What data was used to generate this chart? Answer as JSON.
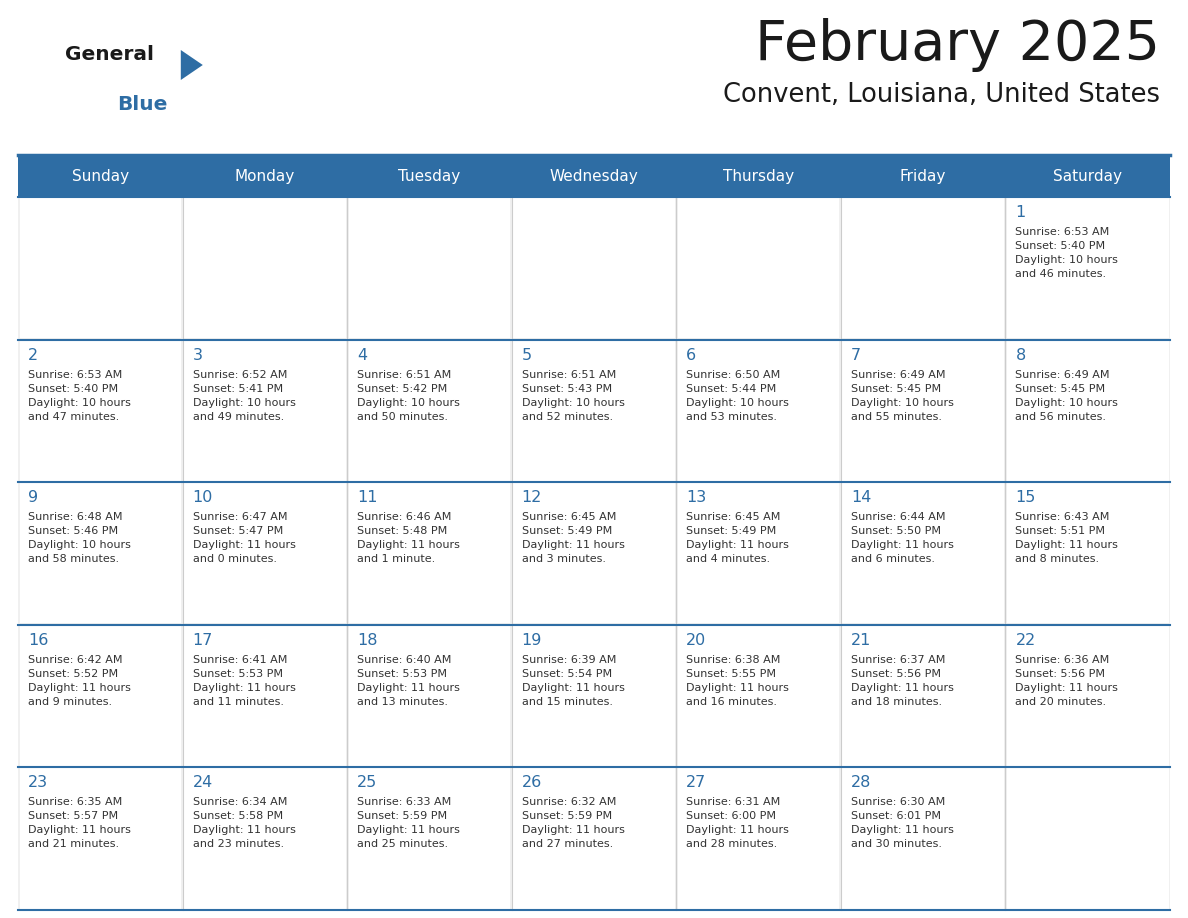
{
  "title": "February 2025",
  "subtitle": "Convent, Louisiana, United States",
  "header_bg": "#2E6DA4",
  "header_text_color": "#FFFFFF",
  "cell_bg": "#F0F0F0",
  "day_number_color": "#2E6DA4",
  "cell_text_color": "#333333",
  "border_color": "#2E6DA4",
  "days_of_week": [
    "Sunday",
    "Monday",
    "Tuesday",
    "Wednesday",
    "Thursday",
    "Friday",
    "Saturday"
  ],
  "weeks": [
    [
      {
        "day": null,
        "info": null
      },
      {
        "day": null,
        "info": null
      },
      {
        "day": null,
        "info": null
      },
      {
        "day": null,
        "info": null
      },
      {
        "day": null,
        "info": null
      },
      {
        "day": null,
        "info": null
      },
      {
        "day": 1,
        "info": "Sunrise: 6:53 AM\nSunset: 5:40 PM\nDaylight: 10 hours\nand 46 minutes."
      }
    ],
    [
      {
        "day": 2,
        "info": "Sunrise: 6:53 AM\nSunset: 5:40 PM\nDaylight: 10 hours\nand 47 minutes."
      },
      {
        "day": 3,
        "info": "Sunrise: 6:52 AM\nSunset: 5:41 PM\nDaylight: 10 hours\nand 49 minutes."
      },
      {
        "day": 4,
        "info": "Sunrise: 6:51 AM\nSunset: 5:42 PM\nDaylight: 10 hours\nand 50 minutes."
      },
      {
        "day": 5,
        "info": "Sunrise: 6:51 AM\nSunset: 5:43 PM\nDaylight: 10 hours\nand 52 minutes."
      },
      {
        "day": 6,
        "info": "Sunrise: 6:50 AM\nSunset: 5:44 PM\nDaylight: 10 hours\nand 53 minutes."
      },
      {
        "day": 7,
        "info": "Sunrise: 6:49 AM\nSunset: 5:45 PM\nDaylight: 10 hours\nand 55 minutes."
      },
      {
        "day": 8,
        "info": "Sunrise: 6:49 AM\nSunset: 5:45 PM\nDaylight: 10 hours\nand 56 minutes."
      }
    ],
    [
      {
        "day": 9,
        "info": "Sunrise: 6:48 AM\nSunset: 5:46 PM\nDaylight: 10 hours\nand 58 minutes."
      },
      {
        "day": 10,
        "info": "Sunrise: 6:47 AM\nSunset: 5:47 PM\nDaylight: 11 hours\nand 0 minutes."
      },
      {
        "day": 11,
        "info": "Sunrise: 6:46 AM\nSunset: 5:48 PM\nDaylight: 11 hours\nand 1 minute."
      },
      {
        "day": 12,
        "info": "Sunrise: 6:45 AM\nSunset: 5:49 PM\nDaylight: 11 hours\nand 3 minutes."
      },
      {
        "day": 13,
        "info": "Sunrise: 6:45 AM\nSunset: 5:49 PM\nDaylight: 11 hours\nand 4 minutes."
      },
      {
        "day": 14,
        "info": "Sunrise: 6:44 AM\nSunset: 5:50 PM\nDaylight: 11 hours\nand 6 minutes."
      },
      {
        "day": 15,
        "info": "Sunrise: 6:43 AM\nSunset: 5:51 PM\nDaylight: 11 hours\nand 8 minutes."
      }
    ],
    [
      {
        "day": 16,
        "info": "Sunrise: 6:42 AM\nSunset: 5:52 PM\nDaylight: 11 hours\nand 9 minutes."
      },
      {
        "day": 17,
        "info": "Sunrise: 6:41 AM\nSunset: 5:53 PM\nDaylight: 11 hours\nand 11 minutes."
      },
      {
        "day": 18,
        "info": "Sunrise: 6:40 AM\nSunset: 5:53 PM\nDaylight: 11 hours\nand 13 minutes."
      },
      {
        "day": 19,
        "info": "Sunrise: 6:39 AM\nSunset: 5:54 PM\nDaylight: 11 hours\nand 15 minutes."
      },
      {
        "day": 20,
        "info": "Sunrise: 6:38 AM\nSunset: 5:55 PM\nDaylight: 11 hours\nand 16 minutes."
      },
      {
        "day": 21,
        "info": "Sunrise: 6:37 AM\nSunset: 5:56 PM\nDaylight: 11 hours\nand 18 minutes."
      },
      {
        "day": 22,
        "info": "Sunrise: 6:36 AM\nSunset: 5:56 PM\nDaylight: 11 hours\nand 20 minutes."
      }
    ],
    [
      {
        "day": 23,
        "info": "Sunrise: 6:35 AM\nSunset: 5:57 PM\nDaylight: 11 hours\nand 21 minutes."
      },
      {
        "day": 24,
        "info": "Sunrise: 6:34 AM\nSunset: 5:58 PM\nDaylight: 11 hours\nand 23 minutes."
      },
      {
        "day": 25,
        "info": "Sunrise: 6:33 AM\nSunset: 5:59 PM\nDaylight: 11 hours\nand 25 minutes."
      },
      {
        "day": 26,
        "info": "Sunrise: 6:32 AM\nSunset: 5:59 PM\nDaylight: 11 hours\nand 27 minutes."
      },
      {
        "day": 27,
        "info": "Sunrise: 6:31 AM\nSunset: 6:00 PM\nDaylight: 11 hours\nand 28 minutes."
      },
      {
        "day": 28,
        "info": "Sunrise: 6:30 AM\nSunset: 6:01 PM\nDaylight: 11 hours\nand 30 minutes."
      },
      {
        "day": null,
        "info": null
      }
    ]
  ],
  "logo_general_color": "#1a1a1a",
  "logo_blue_color": "#2E6DA4",
  "logo_triangle_color": "#2E6DA4",
  "title_color": "#1a1a1a",
  "subtitle_color": "#1a1a1a"
}
